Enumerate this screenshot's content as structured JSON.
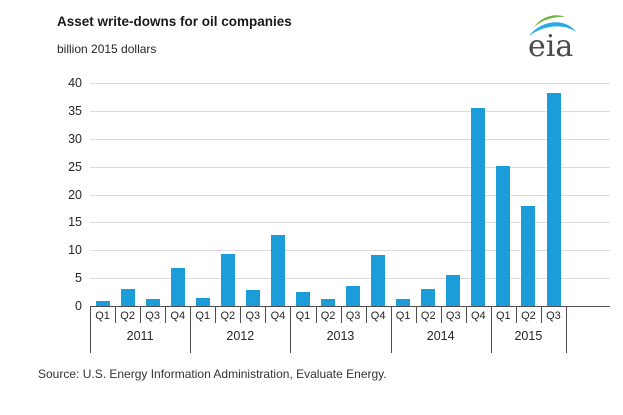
{
  "header": {
    "title": "Asset write-downs for oil companies",
    "subtitle": "billion 2015 dollars",
    "logo_text": "eia"
  },
  "source": {
    "text": "Source:  U.S. Energy Information Administration, Evaluate Energy."
  },
  "chart_data": {
    "type": "bar",
    "title": "Asset write-downs for oil companies",
    "ylabel": "billion 2015 dollars",
    "xlabel": "",
    "ylim": [
      0,
      40
    ],
    "yticks": [
      0,
      5,
      10,
      15,
      20,
      25,
      30,
      35,
      40
    ],
    "grid": true,
    "legend": "none",
    "bar_color": "#1a9dd9",
    "axis_color": "#4d4d4d",
    "grid_color": "#dbdbdb",
    "groups": [
      {
        "year": "2011",
        "quarters": [
          "Q1",
          "Q2",
          "Q3",
          "Q4"
        ],
        "values": [
          0.9,
          3.1,
          1.3,
          6.8
        ]
      },
      {
        "year": "2012",
        "quarters": [
          "Q1",
          "Q2",
          "Q3",
          "Q4"
        ],
        "values": [
          1.4,
          9.4,
          2.8,
          12.7
        ]
      },
      {
        "year": "2013",
        "quarters": [
          "Q1",
          "Q2",
          "Q3",
          "Q4"
        ],
        "values": [
          2.6,
          1.3,
          3.5,
          9.2
        ]
      },
      {
        "year": "2014",
        "quarters": [
          "Q1",
          "Q2",
          "Q3",
          "Q4"
        ],
        "values": [
          1.2,
          3.0,
          5.5,
          35.5
        ]
      },
      {
        "year": "2015",
        "quarters": [
          "Q1",
          "Q2",
          "Q3"
        ],
        "values": [
          25.2,
          18.0,
          38.2
        ]
      }
    ]
  }
}
